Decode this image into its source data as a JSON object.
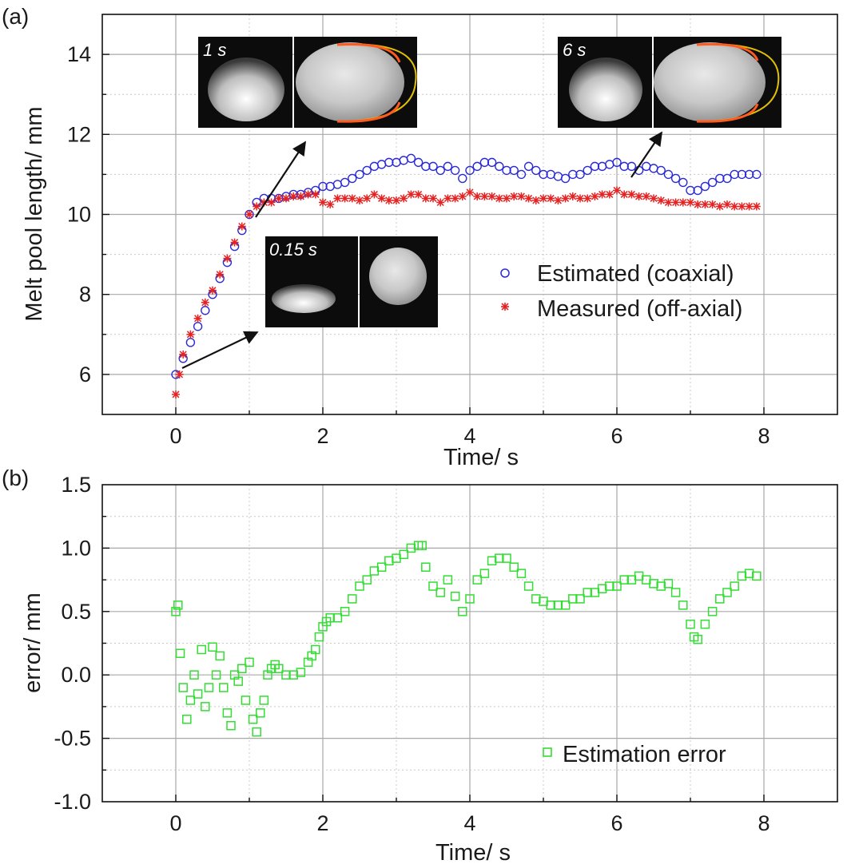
{
  "chart_data": [
    {
      "type": "scatter",
      "panel_label": "(a)",
      "xlabel": "Time/ s",
      "ylabel": "Melt pool length/ mm",
      "xlim": [
        -1,
        9
      ],
      "ylim": [
        5,
        15
      ],
      "xticks": [
        0,
        2,
        4,
        6,
        8
      ],
      "yticks": [
        6,
        8,
        10,
        12,
        14
      ],
      "grid": true,
      "legend_position": "center-right",
      "series": [
        {
          "name": "Estimated (coaxial)",
          "marker": "circle",
          "color": "#2b2bd6",
          "x": [
            0,
            0.1,
            0.2,
            0.3,
            0.4,
            0.5,
            0.6,
            0.7,
            0.8,
            0.9,
            1.0,
            1.1,
            1.2,
            1.3,
            1.4,
            1.5,
            1.6,
            1.7,
            1.8,
            1.9,
            2.0,
            2.1,
            2.2,
            2.3,
            2.4,
            2.5,
            2.6,
            2.7,
            2.8,
            2.9,
            3.0,
            3.1,
            3.2,
            3.3,
            3.4,
            3.5,
            3.6,
            3.7,
            3.8,
            3.9,
            4.0,
            4.1,
            4.2,
            4.3,
            4.4,
            4.5,
            4.6,
            4.7,
            4.8,
            4.9,
            5.0,
            5.1,
            5.2,
            5.3,
            5.4,
            5.5,
            5.6,
            5.7,
            5.8,
            5.9,
            6.0,
            6.1,
            6.2,
            6.3,
            6.4,
            6.5,
            6.6,
            6.7,
            6.8,
            6.9,
            7.0,
            7.1,
            7.2,
            7.3,
            7.4,
            7.5,
            7.6,
            7.7,
            7.8,
            7.9
          ],
          "y": [
            6.0,
            6.4,
            6.8,
            7.2,
            7.6,
            8.0,
            8.4,
            8.8,
            9.2,
            9.6,
            10.0,
            10.3,
            10.4,
            10.4,
            10.4,
            10.45,
            10.5,
            10.5,
            10.55,
            10.6,
            10.7,
            10.7,
            10.75,
            10.8,
            10.9,
            11.0,
            11.1,
            11.2,
            11.25,
            11.3,
            11.3,
            11.35,
            11.4,
            11.3,
            11.2,
            11.2,
            11.1,
            11.2,
            11.1,
            10.9,
            11.1,
            11.2,
            11.3,
            11.3,
            11.2,
            11.1,
            11.1,
            11.0,
            11.2,
            11.1,
            11.0,
            11.0,
            10.95,
            10.9,
            11.0,
            11.0,
            11.1,
            11.2,
            11.2,
            11.25,
            11.3,
            11.2,
            11.2,
            11.1,
            11.2,
            11.15,
            11.1,
            11.0,
            10.9,
            10.8,
            10.6,
            10.6,
            10.7,
            10.8,
            10.9,
            10.9,
            11.0,
            11.0,
            11.0,
            11.0
          ]
        },
        {
          "name": "Measured (off-axial)",
          "marker": "star",
          "color": "#e52222",
          "x": [
            0,
            0.05,
            0.1,
            0.2,
            0.3,
            0.4,
            0.5,
            0.6,
            0.7,
            0.8,
            0.9,
            1.0,
            1.1,
            1.2,
            1.3,
            1.4,
            1.5,
            1.6,
            1.7,
            1.8,
            1.9,
            2.0,
            2.1,
            2.2,
            2.3,
            2.4,
            2.5,
            2.6,
            2.7,
            2.8,
            2.9,
            3.0,
            3.1,
            3.2,
            3.3,
            3.4,
            3.5,
            3.6,
            3.7,
            3.8,
            3.9,
            4.0,
            4.1,
            4.2,
            4.3,
            4.4,
            4.5,
            4.6,
            4.7,
            4.8,
            4.9,
            5.0,
            5.1,
            5.2,
            5.3,
            5.4,
            5.5,
            5.6,
            5.7,
            5.8,
            5.9,
            6.0,
            6.1,
            6.2,
            6.3,
            6.4,
            6.5,
            6.6,
            6.7,
            6.8,
            6.9,
            7.0,
            7.1,
            7.2,
            7.3,
            7.4,
            7.5,
            7.6,
            7.7,
            7.8,
            7.9
          ],
          "y": [
            5.5,
            6.0,
            6.5,
            7.0,
            7.4,
            7.8,
            8.1,
            8.5,
            8.9,
            9.3,
            9.7,
            10.0,
            10.2,
            10.3,
            10.3,
            10.4,
            10.4,
            10.45,
            10.45,
            10.5,
            10.5,
            10.3,
            10.25,
            10.4,
            10.4,
            10.4,
            10.35,
            10.4,
            10.5,
            10.4,
            10.35,
            10.35,
            10.4,
            10.5,
            10.5,
            10.4,
            10.4,
            10.3,
            10.4,
            10.4,
            10.45,
            10.55,
            10.45,
            10.45,
            10.45,
            10.4,
            10.4,
            10.45,
            10.45,
            10.4,
            10.35,
            10.4,
            10.4,
            10.35,
            10.4,
            10.45,
            10.4,
            10.4,
            10.45,
            10.5,
            10.5,
            10.6,
            10.5,
            10.5,
            10.45,
            10.45,
            10.4,
            10.35,
            10.3,
            10.3,
            10.3,
            10.3,
            10.25,
            10.25,
            10.25,
            10.2,
            10.25,
            10.2,
            10.2,
            10.2,
            10.2
          ]
        }
      ],
      "insets": [
        {
          "label": "1 s",
          "frame_time_s": 1
        },
        {
          "label": "6 s",
          "frame_time_s": 6
        },
        {
          "label": "0.15 s",
          "frame_time_s": 0.15
        }
      ]
    },
    {
      "type": "scatter",
      "panel_label": "(b)",
      "xlabel": "Time/ s",
      "ylabel": "error/ mm",
      "xlim": [
        -1,
        9
      ],
      "ylim": [
        -1.0,
        1.5
      ],
      "xticks": [
        0,
        2,
        4,
        6,
        8
      ],
      "yticks": [
        -1.0,
        -0.5,
        0.0,
        0.5,
        1.0,
        1.5
      ],
      "ytick_labels": [
        "-1.0",
        "-0.5",
        "0.0",
        "0.5",
        "1.0",
        "1.5"
      ],
      "grid": true,
      "legend_position": "bottom-right",
      "series": [
        {
          "name": "Estimation error",
          "marker": "square",
          "color": "#33dd33",
          "x": [
            0.0,
            0.03,
            0.06,
            0.1,
            0.15,
            0.2,
            0.25,
            0.3,
            0.35,
            0.4,
            0.45,
            0.5,
            0.55,
            0.6,
            0.65,
            0.7,
            0.75,
            0.8,
            0.85,
            0.9,
            0.95,
            1.0,
            1.05,
            1.1,
            1.15,
            1.2,
            1.25,
            1.3,
            1.35,
            1.4,
            1.5,
            1.6,
            1.7,
            1.8,
            1.85,
            1.9,
            1.95,
            2.0,
            2.05,
            2.1,
            2.2,
            2.3,
            2.4,
            2.5,
            2.6,
            2.7,
            2.8,
            2.9,
            3.0,
            3.1,
            3.2,
            3.3,
            3.35,
            3.4,
            3.5,
            3.6,
            3.7,
            3.8,
            3.9,
            4.0,
            4.1,
            4.2,
            4.3,
            4.4,
            4.5,
            4.6,
            4.7,
            4.8,
            4.9,
            5.0,
            5.1,
            5.2,
            5.3,
            5.4,
            5.5,
            5.6,
            5.7,
            5.8,
            5.9,
            6.0,
            6.1,
            6.2,
            6.3,
            6.4,
            6.5,
            6.6,
            6.7,
            6.8,
            6.9,
            7.0,
            7.05,
            7.1,
            7.2,
            7.3,
            7.4,
            7.5,
            7.6,
            7.7,
            7.8,
            7.9
          ],
          "y": [
            0.5,
            0.55,
            0.17,
            -0.1,
            -0.35,
            -0.2,
            0.0,
            -0.15,
            0.2,
            -0.25,
            -0.1,
            0.22,
            0.0,
            0.15,
            -0.1,
            -0.3,
            -0.4,
            0.0,
            -0.05,
            0.05,
            -0.2,
            0.1,
            -0.35,
            -0.45,
            -0.3,
            -0.2,
            0.0,
            0.05,
            0.08,
            0.05,
            0.0,
            0.0,
            0.02,
            0.1,
            0.15,
            0.2,
            0.3,
            0.38,
            0.42,
            0.45,
            0.45,
            0.5,
            0.6,
            0.7,
            0.75,
            0.82,
            0.85,
            0.9,
            0.92,
            0.95,
            1.0,
            1.02,
            1.02,
            0.85,
            0.7,
            0.65,
            0.75,
            0.62,
            0.5,
            0.6,
            0.75,
            0.8,
            0.9,
            0.92,
            0.92,
            0.85,
            0.8,
            0.7,
            0.6,
            0.58,
            0.55,
            0.55,
            0.55,
            0.6,
            0.6,
            0.65,
            0.65,
            0.68,
            0.7,
            0.7,
            0.75,
            0.75,
            0.78,
            0.75,
            0.72,
            0.7,
            0.72,
            0.65,
            0.55,
            0.4,
            0.3,
            0.28,
            0.4,
            0.5,
            0.6,
            0.65,
            0.7,
            0.78,
            0.8,
            0.78
          ]
        }
      ]
    }
  ]
}
